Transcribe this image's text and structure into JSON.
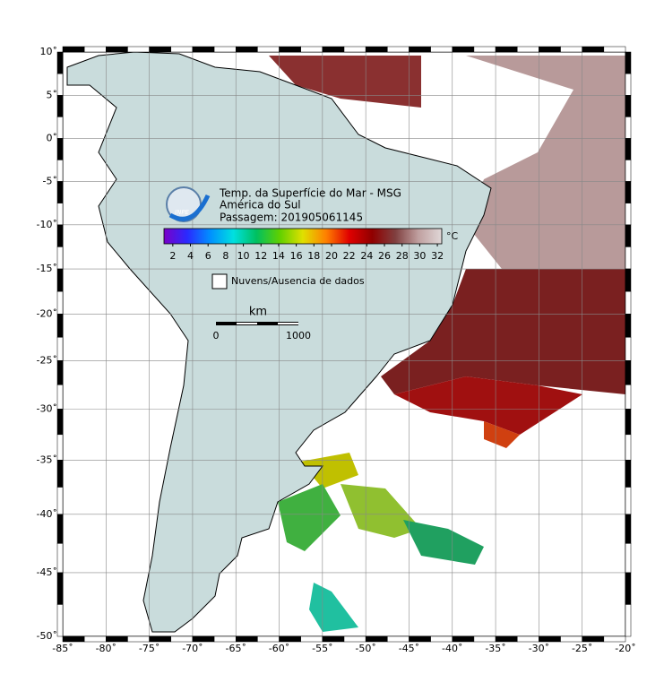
{
  "map": {
    "title": "Temp. da Superfície do Mar - MSG",
    "region": "América do Sul",
    "pass": "Passagem: 201905061145",
    "logo": "INPE",
    "xlim": [
      -85,
      -20
    ],
    "ylim": [
      -50,
      10
    ],
    "xticks": [
      {
        "value": -85,
        "label": "-85˚"
      },
      {
        "value": -80,
        "label": "-80˚"
      },
      {
        "value": -75,
        "label": "-75˚"
      },
      {
        "value": -70,
        "label": "-70˚"
      },
      {
        "value": -65,
        "label": "-65˚"
      },
      {
        "value": -60,
        "label": "-60˚"
      },
      {
        "value": -55,
        "label": "-55˚"
      },
      {
        "value": -50,
        "label": "-50˚"
      },
      {
        "value": -45,
        "label": "-45˚"
      },
      {
        "value": -40,
        "label": "-40˚"
      },
      {
        "value": -35,
        "label": "-35˚"
      },
      {
        "value": -30,
        "label": "-30˚"
      },
      {
        "value": -25,
        "label": "-25˚"
      },
      {
        "value": -20,
        "label": "-20˚"
      }
    ],
    "yticks": [
      {
        "value": 10,
        "label": "10˚"
      },
      {
        "value": 5,
        "label": "5˚"
      },
      {
        "value": 0,
        "label": "0˚"
      },
      {
        "value": -5,
        "label": "-5˚"
      },
      {
        "value": -10,
        "label": "-10˚"
      },
      {
        "value": -15,
        "label": "-15˚"
      },
      {
        "value": -20,
        "label": "-20˚"
      },
      {
        "value": -25,
        "label": "-25˚"
      },
      {
        "value": -30,
        "label": "-30˚"
      },
      {
        "value": -35,
        "label": "-35˚"
      },
      {
        "value": -40,
        "label": "-40˚"
      },
      {
        "value": -45,
        "label": "-45˚"
      },
      {
        "value": -50,
        "label": "-50˚"
      }
    ],
    "grid": true,
    "colorbar": {
      "unit": "°C",
      "lim": [
        1,
        32.5
      ],
      "ticks": [
        2,
        4,
        6,
        8,
        10,
        12,
        14,
        16,
        18,
        20,
        22,
        24,
        26,
        28,
        30,
        32
      ],
      "colors": [
        "#7a00c8",
        "#2a2aff",
        "#0090ff",
        "#00e0e0",
        "#00c060",
        "#60d000",
        "#e0e000",
        "#ff8000",
        "#e00000",
        "#900000",
        "#804040",
        "#c0a0a0",
        "#e0d8d8"
      ]
    },
    "legend": "Nuvens/Ausencia de dados",
    "scale": {
      "unit": "km",
      "start": "0",
      "end": "1000"
    }
  }
}
